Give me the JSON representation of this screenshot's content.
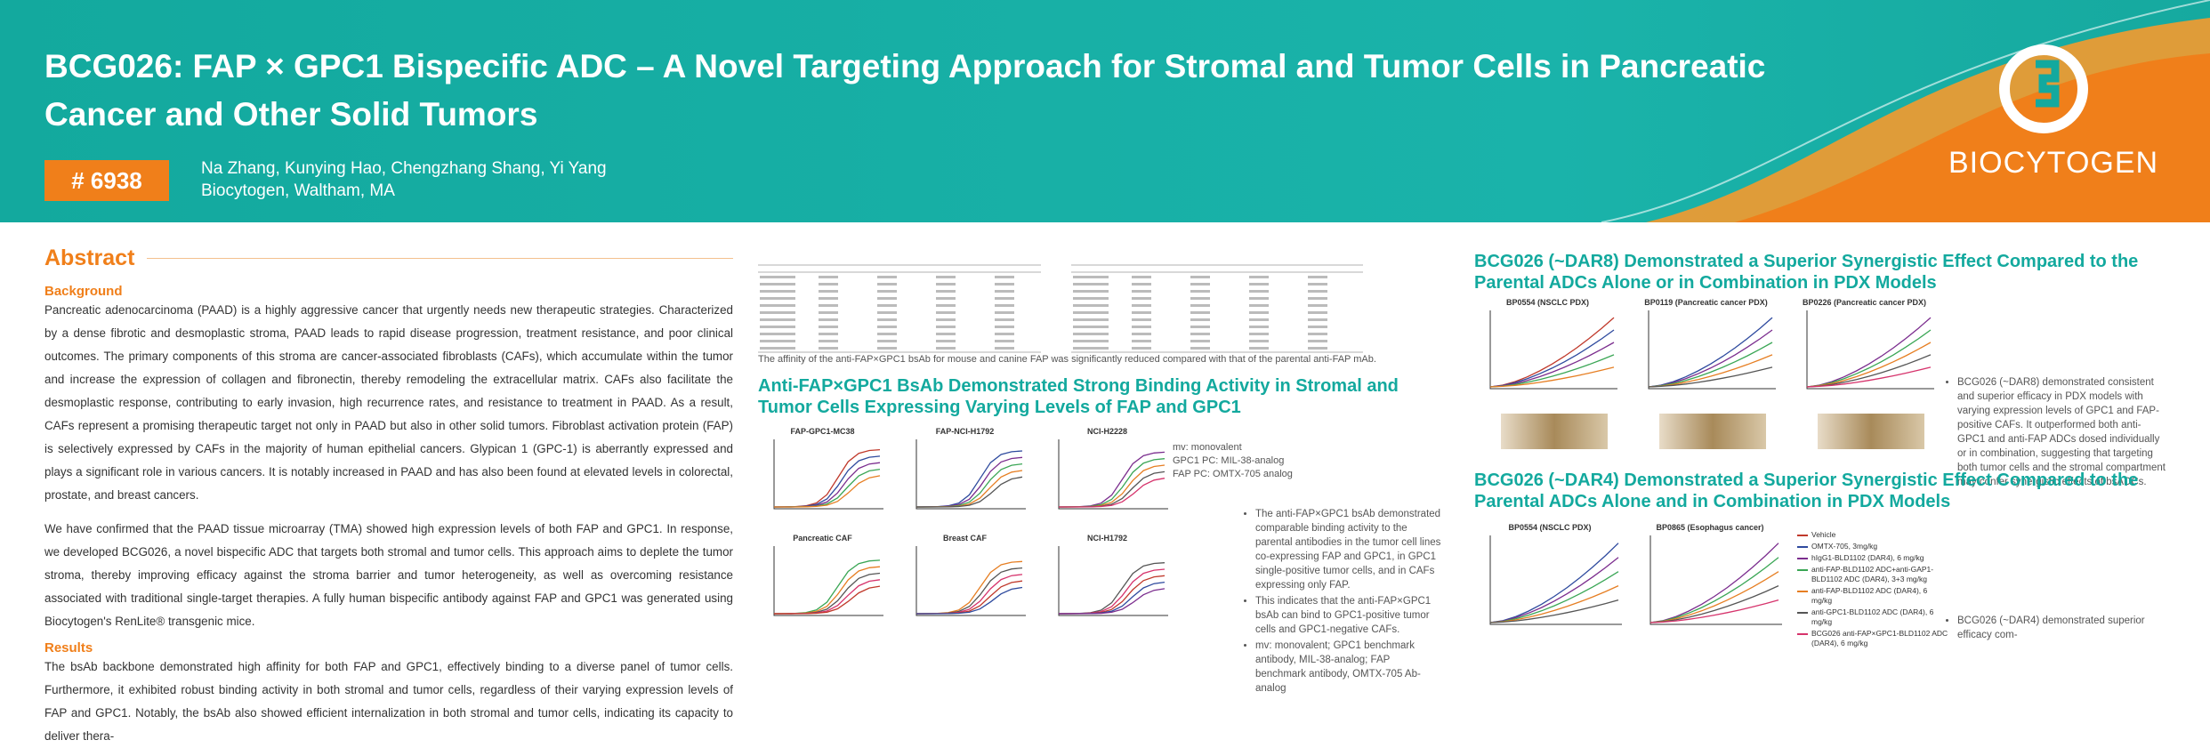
{
  "header": {
    "title": "BCG026: FAP × GPC1 Bispecific ADC – A Novel Targeting Approach for Stromal and Tumor Cells in Pancreatic Cancer and Other Solid Tumors",
    "poster_number": "# 6938",
    "authors": "Na Zhang, Kunying Hao, Chengzhang Shang, Yi Yang",
    "affiliation": "Biocytogen, Waltham, MA",
    "logo": "BIOCYTOGEN"
  },
  "abstract": {
    "heading": "Abstract",
    "background_heading": "Background",
    "paragraphs": [
      "Pancreatic adenocarcinoma (PAAD) is a highly aggressive cancer that urgently needs new therapeutic strategies.  Characterized by a dense fibrotic and desmoplastic stroma, PAAD leads to rapid disease progression, treatment resistance, and poor clinical outcomes. The primary components of this stroma are cancer-associated fibroblasts (CAFs), which accumulate within the tumor and increase the expression of collagen and fibronectin, thereby remodeling the extracellular matrix. CAFs also facilitate the desmoplastic response, contributing to early invasion, high recurrence rates, and resistance to treatment in PAAD. As a result, CAFs represent a promising therapeutic target not only in PAAD but also in other solid tumors. Fibroblast activation protein (FAP) is selectively expressed by CAFs in the majority of human epithelial cancers. Glypican 1 (GPC-1) is aberrantly expressed and plays a significant role in various cancers. It is notably increased in PAAD and has also been found at elevated levels in colorectal, prostate, and breast cancers.",
      "We have confirmed that the PAAD tissue microarray (TMA) showed high expression levels of both FAP and GPC1. In response, we developed BCG026, a novel bispecific ADC that targets both stromal and tumor cells. This approach aims to deplete the tumor stroma, thereby improving efficacy against the stroma barrier and tumor heterogeneity, as well as overcoming resistance associated with traditional single-target therapies. A fully human bispecific antibody against FAP and GPC1 was generated using Biocytogen's RenLite® transgenic mice."
    ],
    "results_heading": "Results",
    "results_text": "The bsAb backbone demonstrated high affinity for both FAP and GPC1, effectively binding to a diverse panel of tumor cells. Furthermore, it exhibited robust binding activity in both stromal and tumor cells, regardless of their varying expression levels of FAP and GPC1. Notably, the bsAb also showed efficient internalization in both stromal and tumor cells, indicating its capacity to deliver thera-"
  },
  "binding": {
    "table_caption": "The affinity of the anti-FAP×GPC1 bsAb for mouse and canine FAP was significantly reduced compared with that of the parental anti-FAP mAb.",
    "heading": "Anti-FAP×GPC1 BsAb Demonstrated Strong Binding Activity in Stromal and Tumor Cells Expressing Varying Levels of FAP and GPC1",
    "panel_titles": [
      "FAP-GPC1-MC38",
      "FAP-NCI-H1792",
      "NCI-H2228",
      "Pancreatic CAF",
      "Breast CAF",
      "NCI-H1792"
    ],
    "notes": [
      "mv: monovalent",
      "GPC1 PC:  MIL-38-analog",
      "FAP PC:  OMTX-705 analog"
    ],
    "bullets": [
      "The anti-FAP×GPC1 bsAb demonstrated comparable binding activity to the parental antibodies in the tumor cell lines co-expressing FAP and GPC1, in GPC1 single-positive tumor cells, and in CAFs expressing only FAP.",
      "This indicates that the anti-FAP×GPC1 bsAb can bind to GPC1-positive tumor cells and GPC1-negative CAFs.",
      "mv: monovalent; GPC1 benchmark antibody, MIL-38-analog; FAP benchmark antibody, OMTX-705 Ab-analog"
    ]
  },
  "dar8": {
    "heading": "BCG026 (~DAR8) Demonstrated a Superior Synergistic Effect Compared to the Parental ADCs Alone or in Combination in PDX Models",
    "panel_titles": [
      "BP0554 (NSCLC PDX)",
      "BP0119 (Pancreatic cancer PDX)",
      "BP0226 (Pancreatic cancer PDX)"
    ],
    "bullet": "BCG026 (~DAR8) demonstrated consistent and superior efficacy in PDX models with varying expression levels of GPC1 and FAP-positive CAFs. It outperformed both anti-GPC1 and anti-FAP ADCs dosed individually or in combination, suggesting that targeting both tumor cells and the stromal compartment may confer synergistic effects of bsADCs."
  },
  "dar4": {
    "heading": "BCG026 (~DAR4) Demonstrated a Superior Synergistic Effect Compared to the Parental ADCs Alone and in Combination in PDX Models",
    "panel_titles": [
      "BP0554 (NSCLC PDX)",
      "BP0865 (Esophagus cancer)"
    ],
    "legend": [
      "Vehicle",
      "OMTX-705, 3mg/kg",
      "hIgG1-BLD1102 (DAR4), 6 mg/kg",
      "anti-FAP-BLD1102 ADC+anti-GAP1-BLD1102 ADC (DAR4), 3+3 mg/kg",
      "anti-FAP-BLD1102 ADC (DAR4), 6 mg/kg",
      "anti-GPC1-BLD1102 ADC (DAR4), 6 mg/kg",
      "BCG026 anti-FAP×GPC1-BLD1102 ADC (DAR4), 6 mg/kg"
    ],
    "bullet": "BCG026 (~DAR4) demonstrated superior efficacy com-"
  }
}
